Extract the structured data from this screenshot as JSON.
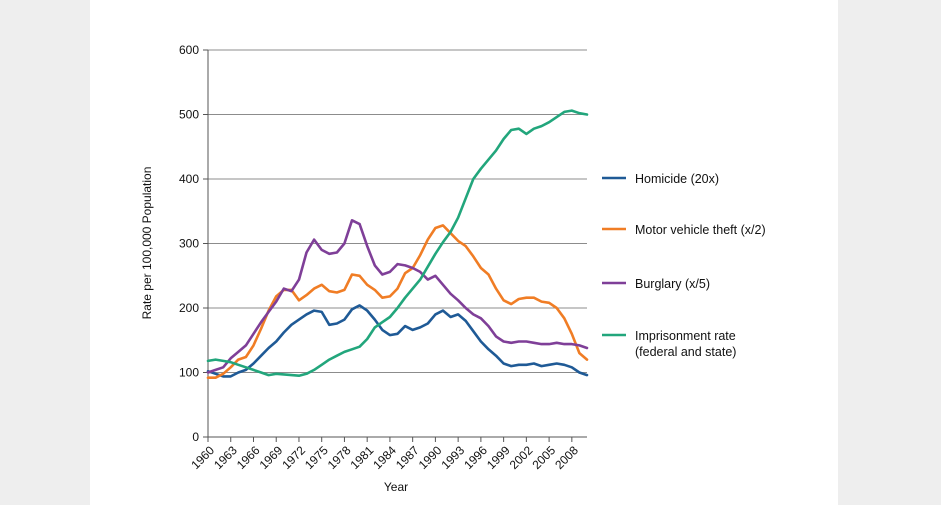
{
  "chart_data": {
    "type": "line",
    "title": "",
    "xlabel": "Year",
    "ylabel": "Rate per 100,000 Population",
    "ylim": [
      0,
      600
    ],
    "yticks": [
      0,
      100,
      200,
      300,
      400,
      500,
      600
    ],
    "xlim": [
      1960,
      2010
    ],
    "xticks": [
      1960,
      1963,
      1966,
      1969,
      1972,
      1975,
      1978,
      1981,
      1984,
      1987,
      1990,
      1993,
      1996,
      1999,
      2002,
      2005,
      2008
    ],
    "legend_position": "right",
    "series": [
      {
        "name": "Homicide (20x)",
        "color": "#1f5a96",
        "x": [
          1960,
          1961,
          1962,
          1963,
          1964,
          1965,
          1966,
          1967,
          1968,
          1969,
          1970,
          1971,
          1972,
          1973,
          1974,
          1975,
          1976,
          1977,
          1978,
          1979,
          1980,
          1981,
          1982,
          1983,
          1984,
          1985,
          1986,
          1987,
          1988,
          1989,
          1990,
          1991,
          1992,
          1993,
          1994,
          1995,
          1996,
          1997,
          1998,
          1999,
          2000,
          2001,
          2002,
          2003,
          2004,
          2005,
          2006,
          2007,
          2008,
          2009,
          2010
        ],
        "y": [
          102,
          98,
          94,
          94,
          100,
          104,
          114,
          126,
          138,
          148,
          162,
          174,
          182,
          190,
          196,
          194,
          174,
          176,
          182,
          198,
          204,
          196,
          182,
          166,
          158,
          160,
          172,
          166,
          170,
          176,
          190,
          196,
          186,
          190,
          180,
          164,
          148,
          136,
          126,
          114,
          110,
          112,
          112,
          114,
          110,
          112,
          114,
          112,
          108,
          100,
          96
        ]
      },
      {
        "name": "Motor vehicle theft (x/2)",
        "color": "#f07d25",
        "x": [
          1960,
          1961,
          1962,
          1963,
          1964,
          1965,
          1966,
          1967,
          1968,
          1969,
          1970,
          1971,
          1972,
          1973,
          1974,
          1975,
          1976,
          1977,
          1978,
          1979,
          1980,
          1981,
          1982,
          1983,
          1984,
          1985,
          1986,
          1987,
          1988,
          1989,
          1990,
          1991,
          1992,
          1993,
          1994,
          1995,
          1996,
          1997,
          1998,
          1999,
          2000,
          2001,
          2002,
          2003,
          2004,
          2005,
          2006,
          2007,
          2008,
          2009,
          2010
        ],
        "y": [
          92,
          92,
          98,
          108,
          120,
          124,
          142,
          168,
          196,
          218,
          228,
          228,
          212,
          220,
          230,
          236,
          226,
          224,
          228,
          252,
          250,
          236,
          228,
          216,
          218,
          230,
          254,
          262,
          282,
          306,
          324,
          328,
          316,
          304,
          296,
          280,
          262,
          252,
          230,
          212,
          206,
          214,
          216,
          216,
          210,
          208,
          200,
          184,
          160,
          130,
          120
        ]
      },
      {
        "name": "Burglary (x/5)",
        "color": "#7f3f98",
        "x": [
          1960,
          1961,
          1962,
          1963,
          1964,
          1965,
          1966,
          1967,
          1968,
          1969,
          1970,
          1971,
          1972,
          1973,
          1974,
          1975,
          1976,
          1977,
          1978,
          1979,
          1980,
          1981,
          1982,
          1983,
          1984,
          1985,
          1986,
          1987,
          1988,
          1989,
          1990,
          1991,
          1992,
          1993,
          1994,
          1995,
          1996,
          1997,
          1998,
          1999,
          2000,
          2001,
          2002,
          2003,
          2004,
          2005,
          2006,
          2007,
          2008,
          2009,
          2010
        ],
        "y": [
          100,
          104,
          108,
          122,
          132,
          142,
          160,
          178,
          194,
          210,
          230,
          226,
          244,
          286,
          306,
          290,
          284,
          286,
          300,
          336,
          330,
          296,
          266,
          252,
          256,
          268,
          266,
          262,
          256,
          244,
          250,
          236,
          222,
          212,
          200,
          190,
          184,
          172,
          156,
          148,
          146,
          148,
          148,
          146,
          144,
          144,
          146,
          144,
          144,
          142,
          138
        ]
      },
      {
        "name": "Imprisonment rate (federal and state)",
        "color": "#22a67c",
        "x": [
          1960,
          1961,
          1962,
          1963,
          1964,
          1965,
          1966,
          1967,
          1968,
          1969,
          1970,
          1971,
          1972,
          1973,
          1974,
          1975,
          1976,
          1977,
          1978,
          1979,
          1980,
          1981,
          1982,
          1983,
          1984,
          1985,
          1986,
          1987,
          1988,
          1989,
          1990,
          1991,
          1992,
          1993,
          1994,
          1995,
          1996,
          1997,
          1998,
          1999,
          2000,
          2001,
          2002,
          2003,
          2004,
          2005,
          2006,
          2007,
          2008,
          2009,
          2010
        ],
        "y": [
          118,
          120,
          118,
          116,
          112,
          108,
          104,
          100,
          96,
          98,
          97,
          96,
          95,
          98,
          104,
          112,
          120,
          126,
          132,
          136,
          140,
          152,
          170,
          178,
          186,
          200,
          216,
          230,
          244,
          264,
          284,
          302,
          318,
          340,
          370,
          400,
          416,
          430,
          444,
          462,
          476,
          478,
          470,
          478,
          482,
          488,
          496,
          504,
          506,
          502,
          500
        ]
      }
    ],
    "legend": [
      {
        "lines": [
          "Homicide (20x)"
        ]
      },
      {
        "lines": [
          "Motor vehicle theft (x/2)"
        ]
      },
      {
        "lines": [
          "Burglary (x/5)"
        ]
      },
      {
        "lines": [
          "Imprisonment rate",
          "(federal and state)"
        ]
      }
    ]
  }
}
